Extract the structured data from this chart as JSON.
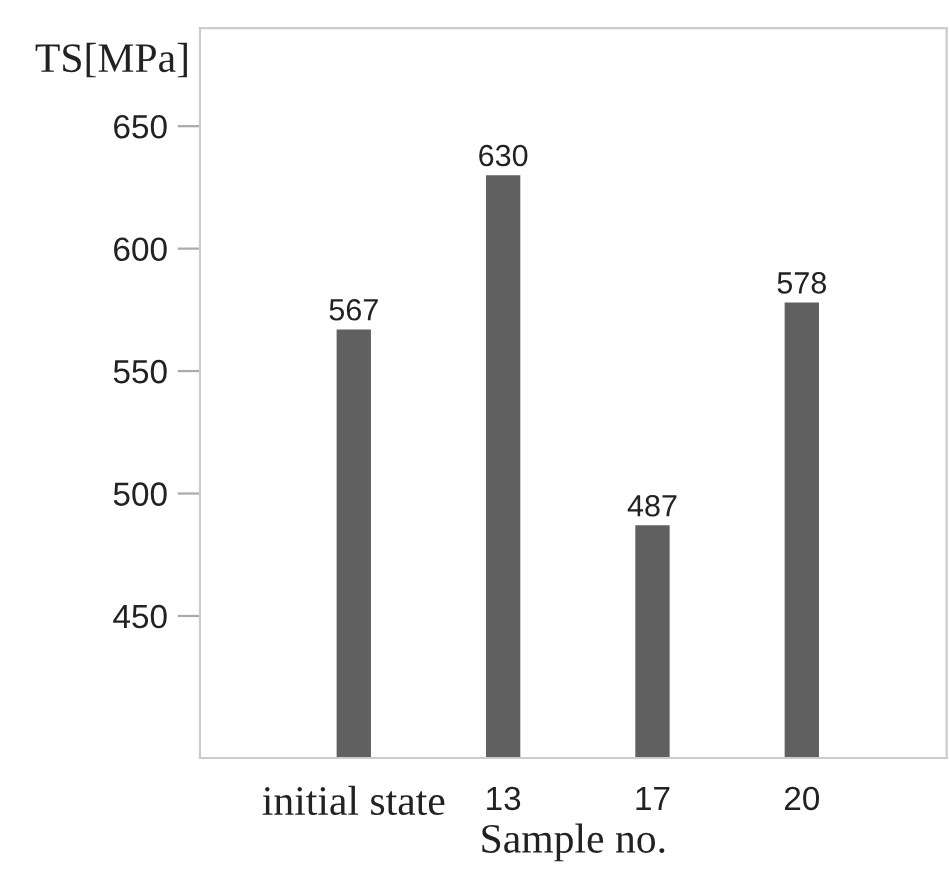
{
  "chart_data": {
    "type": "bar",
    "categories": [
      "initial state",
      "13",
      "17",
      "20"
    ],
    "values": [
      567,
      630,
      487,
      578
    ],
    "color": "#606060",
    "data_labels": true,
    "xlabel": "Sample no.",
    "ylabel": "TS[MPa]",
    "ylim": [
      392,
      690
    ],
    "yticks": [
      450,
      500,
      550,
      600,
      650
    ],
    "grid": false,
    "legend": false
  }
}
